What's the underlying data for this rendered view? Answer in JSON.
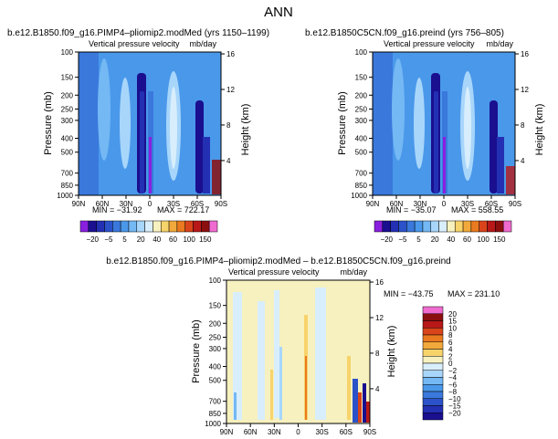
{
  "page_title": "ANN",
  "colors": {
    "main": [
      "#8a1fe0",
      "#1a0f8f",
      "#2330b4",
      "#2b52c8",
      "#3a78dc",
      "#4a98ea",
      "#74b8f4",
      "#a8d6fb",
      "#d8eefc",
      "#f7f1bf",
      "#f7d36b",
      "#f2a93b",
      "#ea7a1f",
      "#d9441a",
      "#b81818",
      "#8c0f0f",
      "#f06bd0"
    ],
    "diff": [
      "#8a1fe0",
      "#1a0f8f",
      "#2330b4",
      "#2b52c8",
      "#3a78dc",
      "#4a98ea",
      "#74b8f4",
      "#a8d6fb",
      "#d8eefc",
      "#f7f1bf",
      "#f7d36b",
      "#f2a93b",
      "#ea7a1f",
      "#d9441a",
      "#b81818",
      "#8c0f0f",
      "#f06bd0"
    ]
  },
  "chart_data": [
    {
      "type": "heatmap",
      "title": "b.e12.B1850.f09_g16.PIMP4–pliomip2.modMed (yrs 1150–1199)",
      "subtitle_left": "Vertical pressure velocity",
      "subtitle_right": "mb/day",
      "ylabel": "Pressure (mb)",
      "ylabel_right": "Height (km)",
      "x_ticks": [
        "90N",
        "60N",
        "30N",
        "0",
        "30S",
        "60S",
        "90S"
      ],
      "y_ticks": [
        "100",
        "150",
        "200",
        "250",
        "300",
        "400",
        "500",
        "700",
        "850",
        "1000"
      ],
      "y_ticks_right": [
        "16",
        "12",
        "8",
        "4"
      ],
      "min_label": "MIN = −31.92",
      "max_label": "MAX = 722.17",
      "colorbar_labels": [
        "−20",
        "−5",
        "5",
        "20",
        "40",
        "60",
        "100",
        "150"
      ]
    },
    {
      "type": "heatmap",
      "title": "b.e12.B1850C5CN.f09_g16.preind (yrs 756–805)",
      "subtitle_left": "Vertical pressure velocity",
      "subtitle_right": "mb/day",
      "ylabel": "Pressure (mb)",
      "ylabel_right": "Height (km)",
      "x_ticks": [
        "90N",
        "60N",
        "30N",
        "0",
        "30S",
        "60S",
        "90S"
      ],
      "y_ticks": [
        "100",
        "150",
        "200",
        "250",
        "300",
        "400",
        "500",
        "700",
        "850",
        "1000"
      ],
      "y_ticks_right": [
        "16",
        "12",
        "8",
        "4"
      ],
      "min_label": "MIN = −35.07",
      "max_label": "MAX = 558.55",
      "colorbar_labels": [
        "−20",
        "−5",
        "5",
        "20",
        "40",
        "60",
        "100",
        "150"
      ]
    },
    {
      "type": "heatmap",
      "title": "b.e12.B1850.f09_g16.PIMP4–pliomip2.modMed – b.e12.B1850C5CN.f09_g16.preind",
      "subtitle_left": "Vertical pressure velocity",
      "subtitle_right": "mb/day",
      "ylabel": "Pressure (mb)",
      "ylabel_right": "Height (km)",
      "x_ticks": [
        "90N",
        "60N",
        "30N",
        "0",
        "30S",
        "60S",
        "90S"
      ],
      "y_ticks": [
        "100",
        "150",
        "200",
        "250",
        "300",
        "400",
        "500",
        "700",
        "850",
        "1000"
      ],
      "y_ticks_right": [
        "16",
        "12",
        "8",
        "4"
      ],
      "min_label": "MIN = −43.75",
      "max_label": "MAX = 231.10",
      "colorbar_labels": [
        "20",
        "15",
        "10",
        "8",
        "6",
        "4",
        "2",
        "0",
        "−2",
        "−4",
        "−6",
        "−8",
        "−10",
        "−15",
        "−20"
      ]
    }
  ]
}
